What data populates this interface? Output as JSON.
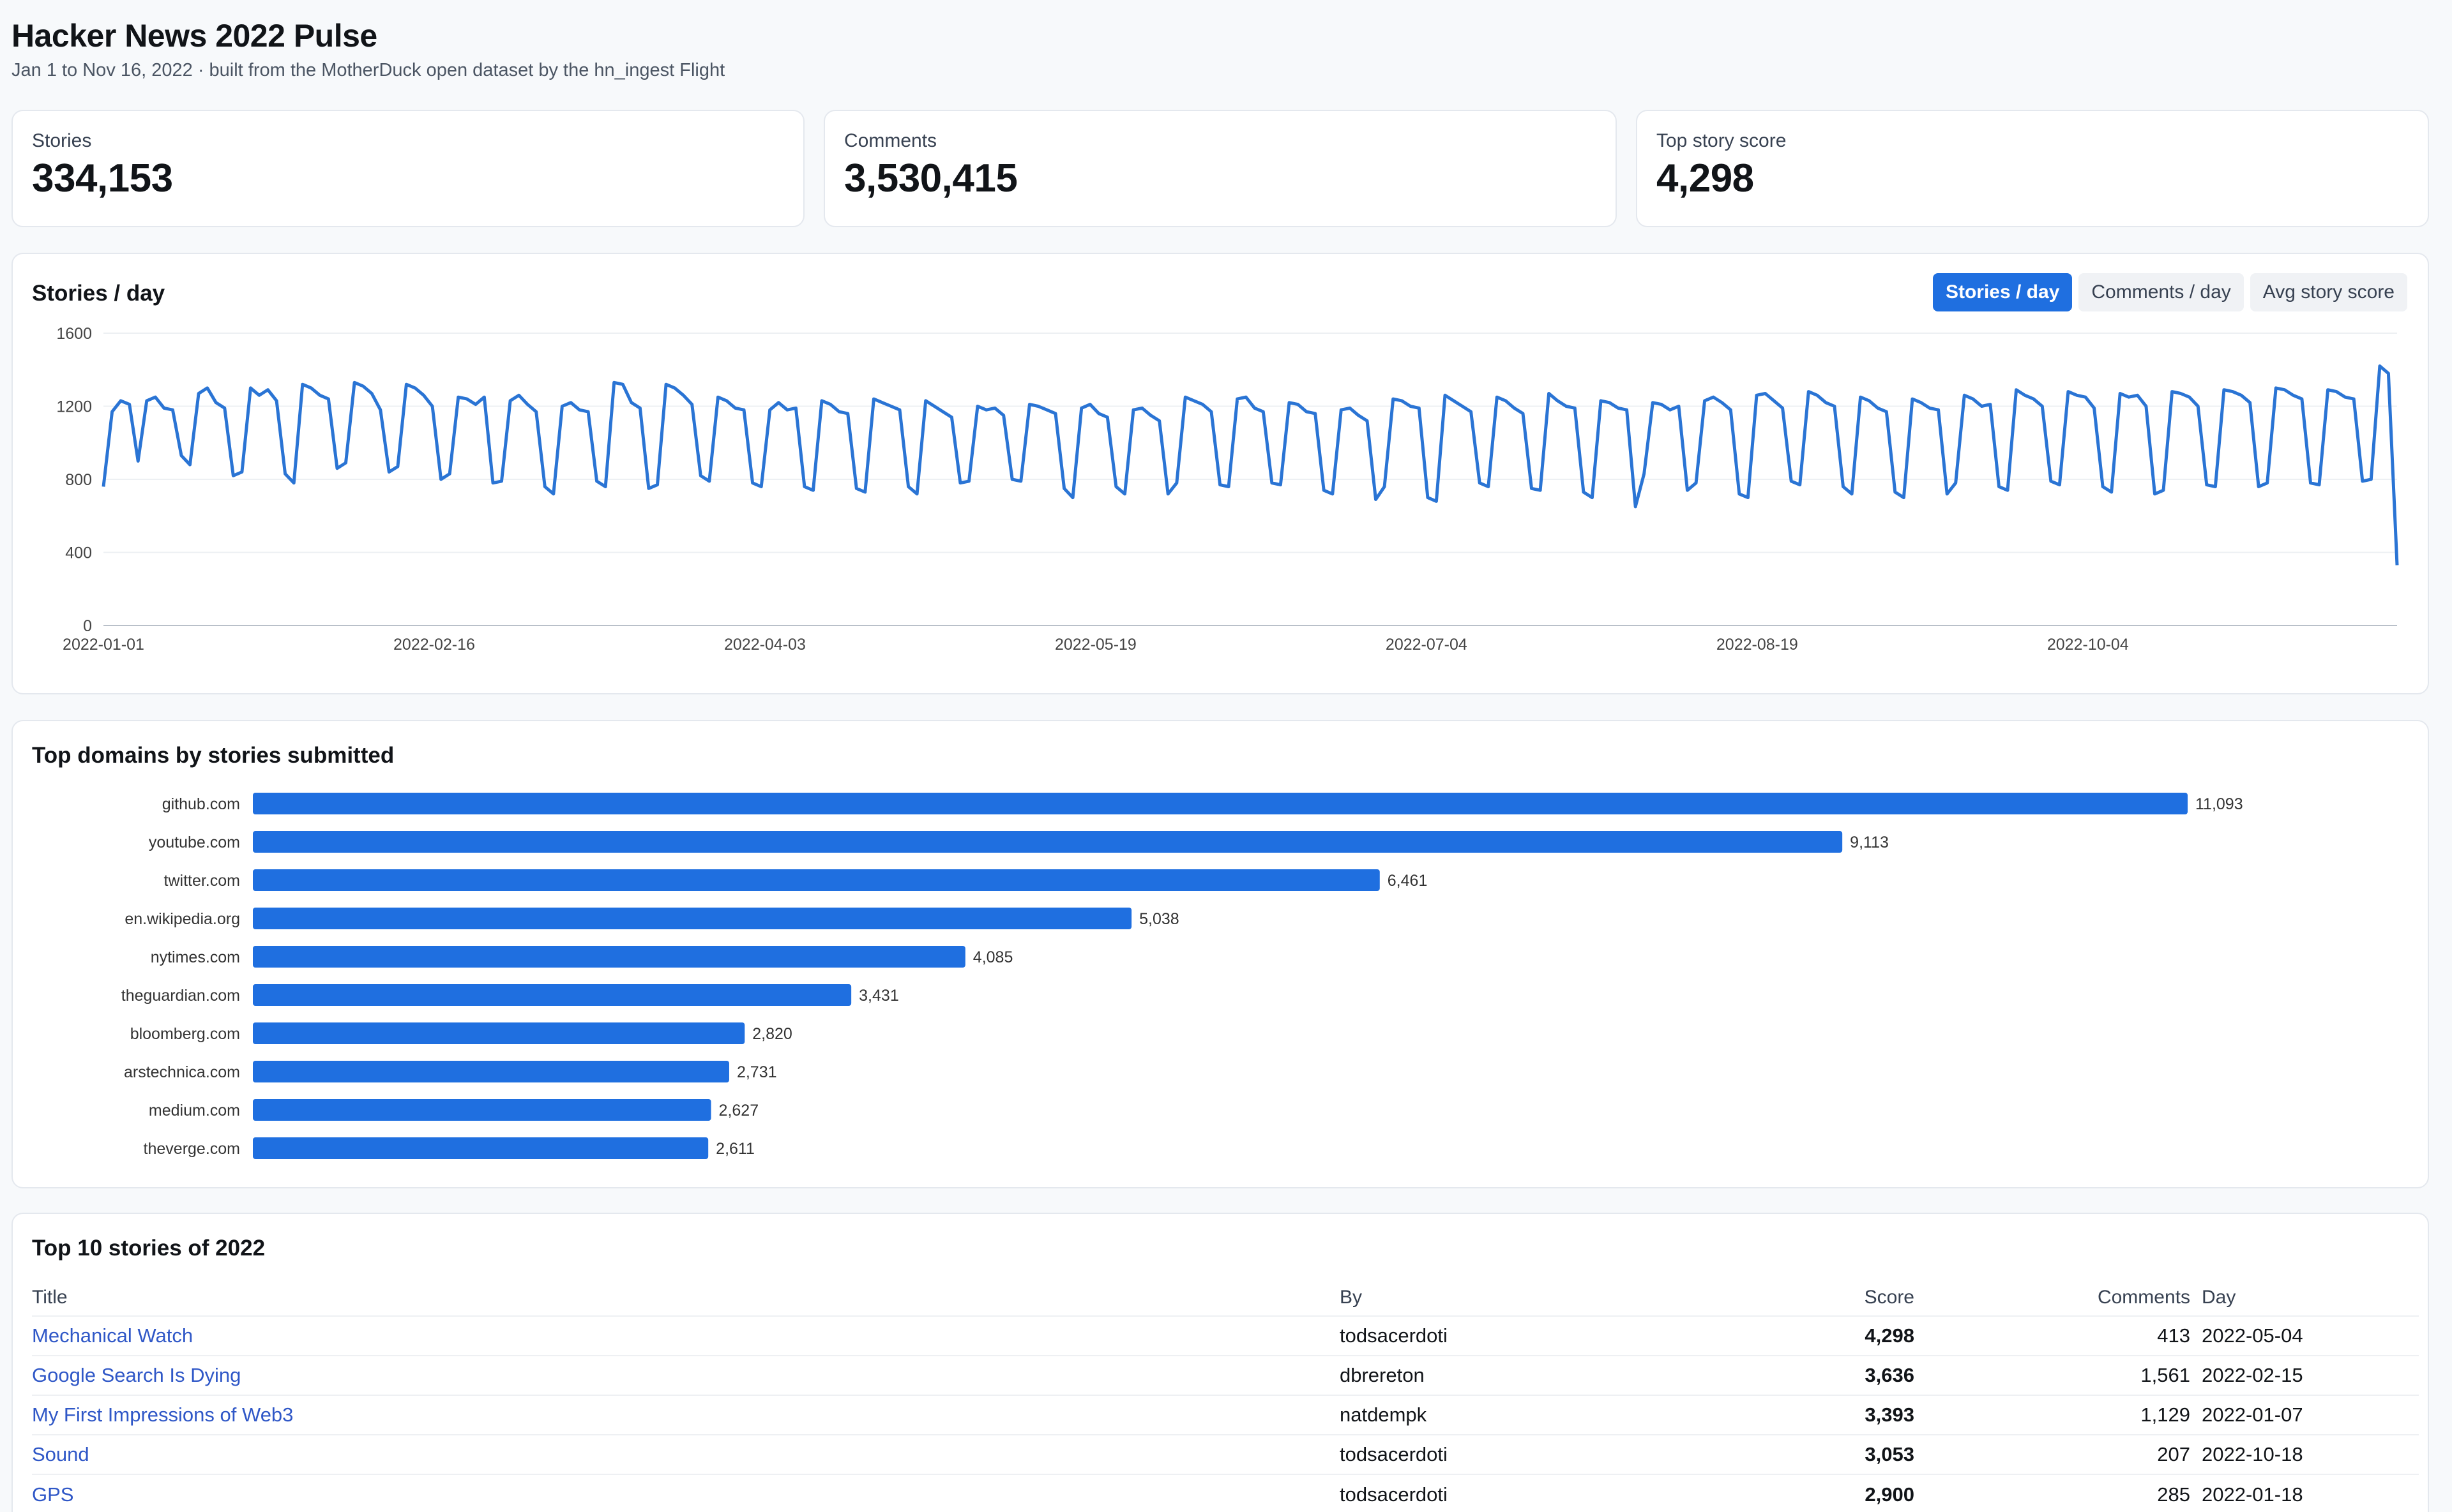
{
  "header": {
    "title": "Hacker News 2022 Pulse",
    "subtitle": "Jan 1 to Nov 16, 2022 · built from the MotherDuck open dataset by the hn_ingest Flight"
  },
  "kpis": [
    {
      "label": "Stories",
      "value": "334,153"
    },
    {
      "label": "Comments",
      "value": "3,530,415"
    },
    {
      "label": "Top story score",
      "value": "4,298"
    }
  ],
  "daily_card": {
    "title": "Stories / day",
    "tabs": [
      {
        "label": "Stories / day",
        "active": true
      },
      {
        "label": "Comments / day",
        "active": false
      },
      {
        "label": "Avg story score",
        "active": false
      }
    ]
  },
  "domains_card": {
    "title": "Top domains by stories submitted"
  },
  "stories_card": {
    "title": "Top 10 stories of 2022",
    "columns": {
      "title": "Title",
      "by": "By",
      "score": "Score",
      "comments": "Comments",
      "day": "Day"
    },
    "rows": [
      {
        "title": "Mechanical Watch",
        "by": "todsacerdoti",
        "score": "4,298",
        "comments": "413",
        "day": "2022-05-04"
      },
      {
        "title": "Google Search Is Dying",
        "by": "dbrereton",
        "score": "3,636",
        "comments": "1,561",
        "day": "2022-02-15"
      },
      {
        "title": "My First Impressions of Web3",
        "by": "natdempk",
        "score": "3,393",
        "comments": "1,129",
        "day": "2022-01-07"
      },
      {
        "title": "Sound",
        "by": "todsacerdoti",
        "score": "3,053",
        "comments": "207",
        "day": "2022-10-18"
      },
      {
        "title": "GPS",
        "by": "todsacerdoti",
        "score": "2,900",
        "comments": "285",
        "day": "2022-01-18"
      }
    ]
  },
  "colors": {
    "accent": "#1f6fe0",
    "line": "#2a74d4",
    "link": "#2f57c7",
    "grid": "#edf0f3"
  },
  "chart_data": [
    {
      "type": "line",
      "x_start": "2022-01-01",
      "x_end": "2022-11-16",
      "x_tick_labels": [
        "2022-01-01",
        "2022-02-16",
        "2022-04-03",
        "2022-05-19",
        "2022-07-04",
        "2022-08-19",
        "2022-10-04"
      ],
      "y_ticks": [
        0,
        400,
        800,
        1200,
        1600
      ],
      "ylim": [
        0,
        1600
      ],
      "series": [
        {
          "values": [
            760,
            1170,
            1230,
            1210,
            900,
            1230,
            1250,
            1190,
            1180,
            930,
            880,
            1270,
            1300,
            1220,
            1190,
            820,
            840,
            1300,
            1260,
            1290,
            1230,
            830,
            780,
            1320,
            1300,
            1260,
            1240,
            860,
            890,
            1330,
            1310,
            1270,
            1180,
            840,
            870,
            1320,
            1300,
            1260,
            1200,
            800,
            830,
            1250,
            1240,
            1210,
            1250,
            780,
            790,
            1230,
            1260,
            1210,
            1170,
            760,
            720,
            1200,
            1220,
            1180,
            1170,
            790,
            760,
            1330,
            1320,
            1220,
            1190,
            750,
            770,
            1320,
            1300,
            1260,
            1210,
            820,
            790,
            1250,
            1230,
            1190,
            1180,
            780,
            760,
            1180,
            1220,
            1180,
            1190,
            760,
            740,
            1230,
            1210,
            1170,
            1160,
            750,
            730,
            1240,
            1220,
            1200,
            1180,
            760,
            720,
            1230,
            1200,
            1170,
            1140,
            780,
            790,
            1200,
            1180,
            1190,
            1150,
            800,
            790,
            1210,
            1200,
            1180,
            1160,
            750,
            700,
            1190,
            1210,
            1160,
            1140,
            760,
            720,
            1180,
            1190,
            1150,
            1120,
            720,
            780,
            1250,
            1230,
            1210,
            1170,
            770,
            760,
            1240,
            1250,
            1190,
            1170,
            780,
            770,
            1220,
            1210,
            1170,
            1160,
            740,
            720,
            1180,
            1190,
            1150,
            1120,
            690,
            760,
            1240,
            1230,
            1200,
            1190,
            700,
            680,
            1260,
            1230,
            1200,
            1170,
            780,
            760,
            1250,
            1230,
            1190,
            1160,
            750,
            740,
            1270,
            1230,
            1200,
            1190,
            730,
            700,
            1230,
            1220,
            1190,
            1180,
            650,
            830,
            1220,
            1210,
            1180,
            1200,
            740,
            780,
            1230,
            1250,
            1220,
            1180,
            720,
            700,
            1260,
            1270,
            1230,
            1190,
            790,
            770,
            1280,
            1260,
            1220,
            1200,
            760,
            720,
            1250,
            1230,
            1190,
            1170,
            730,
            700,
            1240,
            1220,
            1190,
            1180,
            720,
            780,
            1260,
            1240,
            1200,
            1210,
            760,
            740,
            1290,
            1260,
            1240,
            1200,
            790,
            770,
            1280,
            1260,
            1250,
            1190,
            760,
            730,
            1270,
            1250,
            1260,
            1200,
            720,
            740,
            1280,
            1270,
            1250,
            1200,
            770,
            760,
            1290,
            1280,
            1260,
            1220,
            760,
            780,
            1300,
            1290,
            1260,
            1240,
            780,
            770,
            1290,
            1280,
            1250,
            1240,
            790,
            800,
            1420,
            1380,
            330
          ]
        }
      ]
    },
    {
      "type": "bar",
      "orientation": "horizontal",
      "categories": [
        "github.com",
        "youtube.com",
        "twitter.com",
        "en.wikipedia.org",
        "nytimes.com",
        "theguardian.com",
        "bloomberg.com",
        "arstechnica.com",
        "medium.com",
        "theverge.com"
      ],
      "values": [
        11093,
        9113,
        6461,
        5038,
        4085,
        3431,
        2820,
        2731,
        2627,
        2611
      ],
      "value_labels": [
        "11,093",
        "9,113",
        "6,461",
        "5,038",
        "4,085",
        "3,431",
        "2,820",
        "2,731",
        "2,627",
        "2,611"
      ]
    }
  ]
}
